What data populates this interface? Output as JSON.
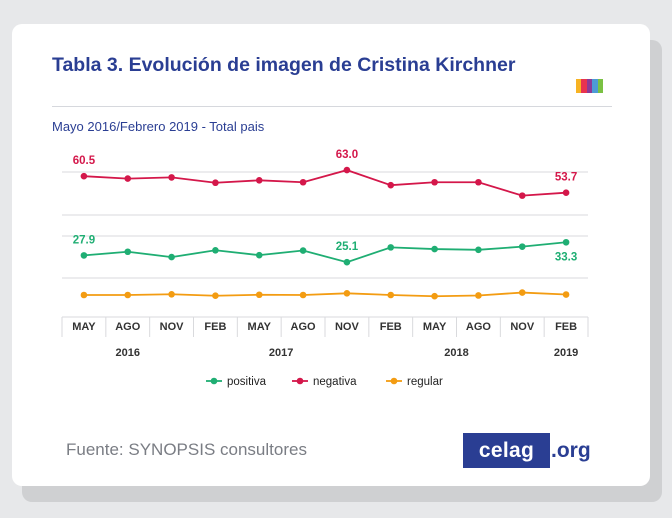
{
  "header": {
    "title": "Tabla 3. Evolución de imagen de Cristina Kirchner",
    "subtitle": "Mayo 2016/Febrero 2019 - Total pais",
    "accent_colors": [
      "#f7b323",
      "#e8334f",
      "#8c3a97",
      "#4d9bd5",
      "#7ac143"
    ]
  },
  "footer": {
    "source": "Fuente: SYNOPSIS consultores",
    "logo_main": "celag",
    "logo_tld": ".org"
  },
  "chart_data": {
    "type": "line",
    "categories": [
      "MAY",
      "AGO",
      "NOV",
      "FEB",
      "MAY",
      "AGO",
      "NOV",
      "FEB",
      "MAY",
      "AGO",
      "NOV",
      "FEB"
    ],
    "year_labels": [
      {
        "label": "2016",
        "start": 0,
        "end": 2
      },
      {
        "label": "2017",
        "start": 3,
        "end": 6
      },
      {
        "label": "2018",
        "start": 7,
        "end": 10
      },
      {
        "label": "2019",
        "start": 11,
        "end": 11
      }
    ],
    "series": [
      {
        "name": "positiva",
        "color": "#1fae73",
        "values": [
          27.9,
          29.4,
          27.2,
          30.0,
          28.0,
          29.9,
          25.1,
          31.2,
          30.5,
          30.2,
          31.5,
          33.3
        ],
        "labels": [
          {
            "index": 0,
            "text": "27.9"
          },
          {
            "index": 6,
            "text": "25.1"
          },
          {
            "index": 11,
            "text": "33.3"
          }
        ]
      },
      {
        "name": "negativa",
        "color": "#d4174a",
        "values": [
          60.5,
          59.5,
          60.0,
          57.8,
          58.8,
          58.0,
          63.0,
          56.8,
          58.0,
          58.0,
          52.5,
          53.7
        ],
        "labels": [
          {
            "index": 0,
            "text": "60.5"
          },
          {
            "index": 6,
            "text": "63.0"
          },
          {
            "index": 11,
            "text": "53.7"
          }
        ]
      },
      {
        "name": "regular",
        "color": "#f39c12",
        "values": [
          11.6,
          11.6,
          11.9,
          11.3,
          11.7,
          11.6,
          12.3,
          11.6,
          11.1,
          11.4,
          12.6,
          11.8
        ],
        "labels": []
      }
    ],
    "legend_position": "bottom",
    "grid": true
  }
}
